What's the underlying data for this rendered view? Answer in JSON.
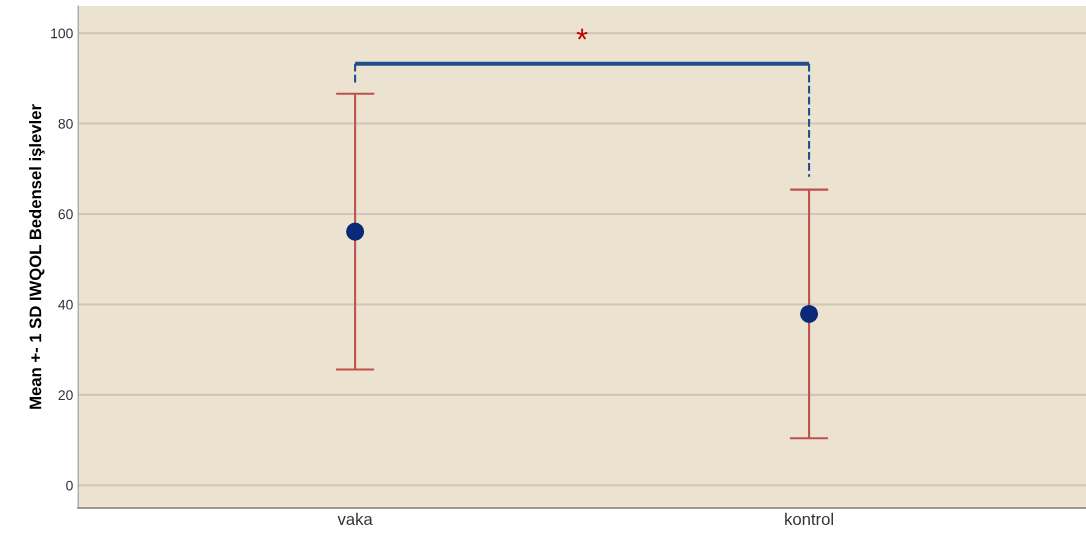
{
  "chart_data": {
    "type": "scatter",
    "ylabel": "Mean +- 1 SD IWQOL Bedensel işlevler",
    "categories": [
      "vaka",
      "kontrol"
    ],
    "color": "#0a2a78",
    "values": [
      56.1,
      37.9
    ],
    "errors": [
      30.5,
      27.5
    ],
    "ylim": [
      -5,
      106
    ],
    "yticks": [
      0,
      20,
      40,
      60,
      80,
      100
    ],
    "grid": "y",
    "marker": "circle",
    "annotations": [
      "*"
    ]
  }
}
